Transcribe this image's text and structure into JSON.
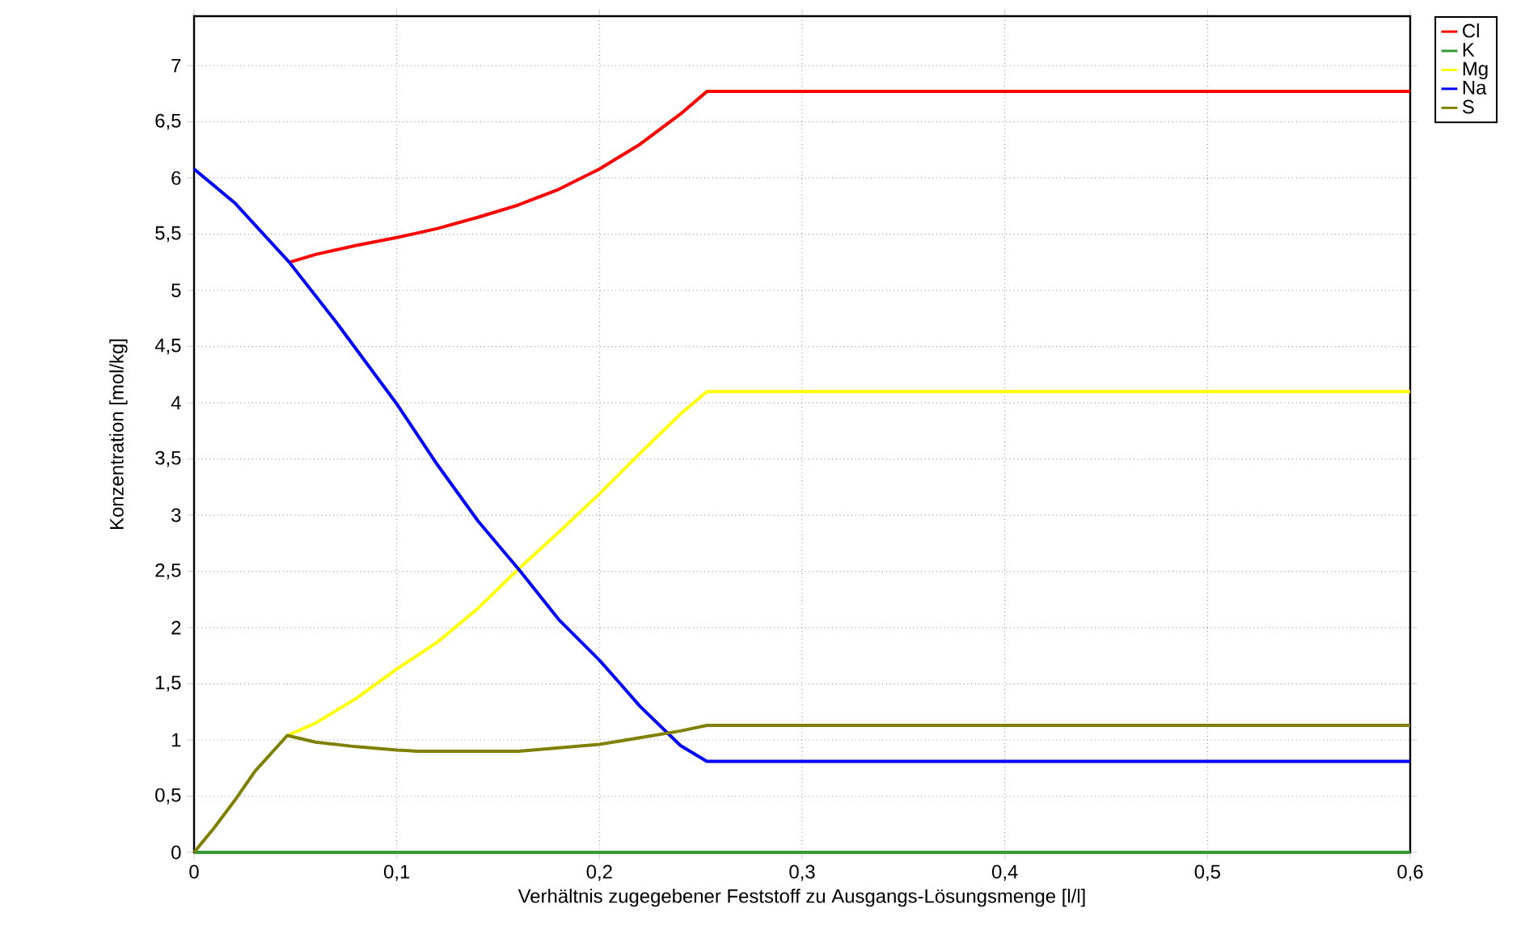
{
  "chart_data": {
    "type": "line",
    "xlabel": "Verhältnis zugegebener Feststoff zu Ausgangs-Lösungsmenge [l/l]",
    "ylabel": "Konzentration [mol/kg]",
    "xlim": [
      0,
      0.6
    ],
    "ylim": [
      0,
      7.44
    ],
    "xticks": [
      0,
      {
        "value": 0.1,
        "label": "0,1"
      },
      {
        "value": 0.2,
        "label": "0,2"
      },
      {
        "value": 0.3,
        "label": "0,3"
      },
      {
        "value": 0.4,
        "label": "0,4"
      },
      {
        "value": 0.5,
        "label": "0,5"
      },
      {
        "value": 0.6,
        "label": "0,6"
      }
    ],
    "yticks": [
      0,
      {
        "value": 0.5,
        "label": "0,5"
      },
      1,
      {
        "value": 1.5,
        "label": "1,5"
      },
      2,
      {
        "value": 2.5,
        "label": "2,5"
      },
      3,
      {
        "value": 3.5,
        "label": "3,5"
      },
      4,
      {
        "value": 4.5,
        "label": "4,5"
      },
      5,
      {
        "value": 5.5,
        "label": "5,5"
      },
      6,
      {
        "value": 6.5,
        "label": "6,5"
      },
      7
    ],
    "grid": true,
    "legend": "top right",
    "line_style": "solid",
    "series": [
      {
        "name": "Cl",
        "color": "#ff0000",
        "x": [
          0.047,
          0.06,
          0.08,
          0.1,
          0.12,
          0.14,
          0.16,
          0.18,
          0.2,
          0.22,
          0.24,
          0.253,
          0.6
        ],
        "values": [
          5.25,
          5.32,
          5.4,
          5.47,
          5.55,
          5.65,
          5.76,
          5.9,
          6.08,
          6.3,
          6.57,
          6.77,
          6.77
        ]
      },
      {
        "name": "K",
        "color": "#339933",
        "x": [
          0,
          0.6
        ],
        "values": [
          0,
          0
        ]
      },
      {
        "name": "Mg",
        "color": "#ffff00",
        "x": [
          0.046,
          0.06,
          0.08,
          0.1,
          0.12,
          0.14,
          0.16,
          0.18,
          0.2,
          0.22,
          0.24,
          0.253,
          0.6
        ],
        "values": [
          1.04,
          1.15,
          1.37,
          1.63,
          1.87,
          2.17,
          2.52,
          2.85,
          3.19,
          3.55,
          3.9,
          4.1,
          4.1
        ]
      },
      {
        "name": "Na",
        "color": "#0000ff",
        "x": [
          0,
          0.02,
          0.047,
          0.07,
          0.1,
          0.12,
          0.14,
          0.161,
          0.18,
          0.2,
          0.22,
          0.24,
          0.253,
          0.6
        ],
        "values": [
          6.08,
          5.78,
          5.25,
          4.72,
          3.99,
          3.45,
          2.95,
          2.5,
          2.07,
          1.71,
          1.3,
          0.95,
          0.81,
          0.81
        ]
      },
      {
        "name": "S",
        "color": "#808000",
        "x": [
          0,
          0.01,
          0.02,
          0.03,
          0.046,
          0.06,
          0.08,
          0.1,
          0.11,
          0.14,
          0.16,
          0.18,
          0.2,
          0.22,
          0.24,
          0.253,
          0.6
        ],
        "values": [
          0,
          0.22,
          0.46,
          0.72,
          1.04,
          0.98,
          0.94,
          0.91,
          0.9,
          0.9,
          0.9,
          0.93,
          0.96,
          1.02,
          1.08,
          1.13,
          1.13
        ]
      }
    ]
  }
}
